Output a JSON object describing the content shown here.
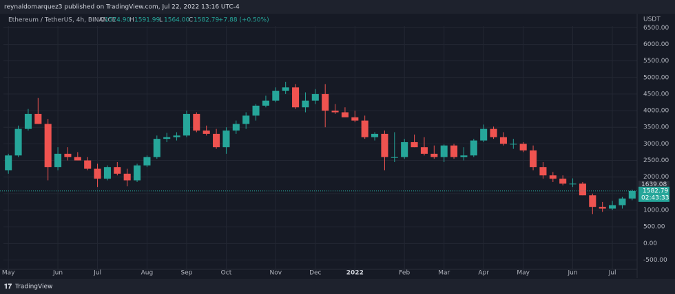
{
  "header": {
    "publisher": "reynaldomarquez3 published on TradingView.com, Jul 22, 2022 13:16 UTC-4",
    "brand": "TradingView"
  },
  "chart_data": {
    "type": "candlestick",
    "title": "Ethereum / TetherUS, 4h, BINANCE",
    "ohlc_legend": [
      "O",
      "1574.90",
      "H",
      "1591.99",
      "L",
      "1564.00",
      "C",
      "1582.79",
      "+7.88 (+0.50%)"
    ],
    "currency": "USDT",
    "categories": [
      "May",
      null,
      null,
      null,
      null,
      "Jun",
      null,
      null,
      null,
      "Jul",
      null,
      null,
      null,
      null,
      "Aug",
      null,
      null,
      null,
      "Sep",
      null,
      null,
      null,
      "Oct",
      null,
      null,
      null,
      null,
      "Nov",
      null,
      null,
      null,
      "Dec",
      null,
      null,
      null,
      "2022",
      null,
      null,
      null,
      null,
      "Feb",
      null,
      null,
      null,
      "Mar",
      null,
      null,
      null,
      "Apr",
      null,
      null,
      null,
      "May",
      null,
      null,
      null,
      null,
      "Jun",
      null,
      null,
      null,
      "Jul",
      null,
      null
    ],
    "open": [
      2200,
      2650,
      3450,
      3900,
      3600,
      2300,
      2700,
      2600,
      2500,
      2250,
      1950,
      2300,
      2100,
      1900,
      2350,
      2600,
      3150,
      3200,
      3250,
      3900,
      3400,
      3300,
      2900,
      3400,
      3600,
      3850,
      4150,
      4300,
      4600,
      4700,
      4100,
      4300,
      4500,
      4000,
      3950,
      3800,
      3700,
      3200,
      3300,
      2600,
      2600,
      3050,
      2900,
      2700,
      2600,
      2950,
      2600,
      2650,
      3100,
      3450,
      3200,
      3000,
      3000,
      2800,
      2300,
      2050,
      1950,
      1800,
      1800,
      1450,
      1100,
      1050,
      1150,
      1350
    ],
    "high": [
      2700,
      3550,
      4050,
      4380,
      3750,
      2900,
      2900,
      2750,
      2600,
      2400,
      2350,
      2450,
      2250,
      2400,
      2650,
      3250,
      3330,
      3350,
      4000,
      3950,
      3550,
      3450,
      3500,
      3700,
      3950,
      4200,
      4450,
      4700,
      4870,
      4800,
      4550,
      4650,
      4800,
      4200,
      4100,
      4000,
      3850,
      3350,
      3400,
      3350,
      3150,
      3280,
      3200,
      2950,
      2980,
      3000,
      2900,
      3150,
      3580,
      3520,
      3350,
      3150,
      3050,
      2950,
      2450,
      2150,
      2050,
      1960,
      1850,
      1500,
      1250,
      1280,
      1400,
      1620
    ],
    "low": [
      2100,
      2600,
      3400,
      3600,
      1900,
      2200,
      2500,
      2500,
      2200,
      1700,
      1900,
      2050,
      1720,
      1850,
      2300,
      2550,
      3050,
      3100,
      3200,
      3350,
      3250,
      2850,
      2700,
      3300,
      3450,
      3700,
      4100,
      4250,
      4500,
      4050,
      3950,
      4200,
      3500,
      3900,
      3850,
      3650,
      3150,
      3100,
      2200,
      2450,
      2550,
      2900,
      2650,
      2550,
      2450,
      2550,
      2500,
      2600,
      3050,
      3150,
      2950,
      2850,
      2750,
      2200,
      1950,
      1850,
      1750,
      1700,
      1450,
      880,
      950,
      1000,
      1050,
      1300
    ],
    "close": [
      2650,
      3450,
      3900,
      3600,
      2300,
      2700,
      2600,
      2500,
      2250,
      1950,
      2300,
      2100,
      1900,
      2350,
      2600,
      3150,
      3200,
      3250,
      3900,
      3400,
      3300,
      2900,
      3400,
      3600,
      3850,
      4150,
      4300,
      4600,
      4700,
      4100,
      4300,
      4500,
      4000,
      3950,
      3800,
      3700,
      3200,
      3300,
      2600,
      2600,
      3050,
      2900,
      2700,
      2600,
      2950,
      2600,
      2650,
      3100,
      3450,
      3200,
      3000,
      3000,
      2800,
      2300,
      2050,
      1950,
      1800,
      1800,
      1450,
      1100,
      1050,
      1150,
      1350,
      1582.79
    ],
    "up_color": "#26a69a",
    "down_color": "#ef5350",
    "ylim": [
      -780,
      6920
    ],
    "yticks": [
      {
        "value": -500,
        "label": "-500.00"
      },
      {
        "value": 0,
        "label": "0.00"
      },
      {
        "value": 500,
        "label": "500.00"
      },
      {
        "value": 1000,
        "label": "1000.00"
      },
      {
        "value": 1500,
        "label": "1500.00"
      },
      {
        "value": 2000,
        "label": "2000.00"
      },
      {
        "value": 2500,
        "label": "2500.00"
      },
      {
        "value": 3000,
        "label": "3000.00"
      },
      {
        "value": 3500,
        "label": "3500.00"
      },
      {
        "value": 4000,
        "label": "4000.00"
      },
      {
        "value": 4500,
        "label": "4500.00"
      },
      {
        "value": 5000,
        "label": "5000.00"
      },
      {
        "value": 5500,
        "label": "5500.00"
      },
      {
        "value": 6000,
        "label": "6000.00"
      },
      {
        "value": 6500,
        "label": "6500.00"
      }
    ],
    "marker": 1639.08,
    "last_price": 1582.79,
    "countdown": "02:43:33",
    "grid": true
  }
}
